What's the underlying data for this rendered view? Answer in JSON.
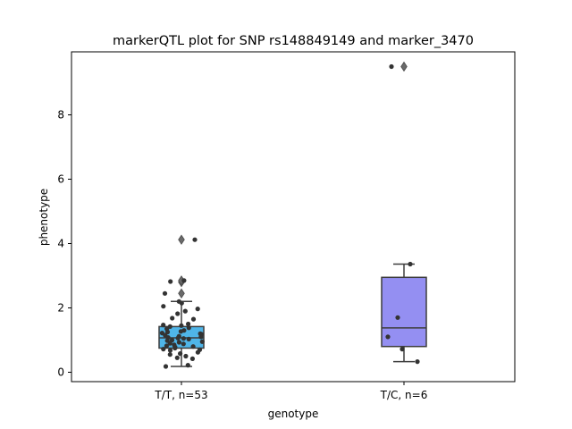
{
  "chart_data": {
    "type": "box",
    "title": "markerQTL plot for SNP rs148849149 and marker_3470",
    "xlabel": "genotype",
    "ylabel": "phenotype",
    "ylim": [
      -0.3,
      9.75
    ],
    "yticks": [
      0,
      2,
      4,
      6,
      8
    ],
    "categories": [
      "T/T, n=53",
      "T/C, n=6"
    ],
    "colors": {
      "T/T, n=53": "#4fb5e8",
      "T/C, n=6": "#948ff2"
    },
    "boxes": [
      {
        "category": "T/T, n=53",
        "q1": 0.75,
        "median": 1.07,
        "q3": 1.42,
        "whisker_low": 0.18,
        "whisker_high": 2.2,
        "outliers": [
          2.45,
          2.8,
          2.85,
          4.12
        ]
      },
      {
        "category": "T/C, n=6",
        "q1": 0.8,
        "median": 1.38,
        "q3": 2.95,
        "whisker_low": 0.33,
        "whisker_high": 3.36,
        "outliers": [
          9.5
        ]
      }
    ],
    "points": [
      {
        "category": "T/T, n=53",
        "values": [
          4.12,
          2.85,
          2.45,
          2.82,
          2.2,
          2.15,
          2.05,
          1.97,
          1.9,
          1.82,
          1.68,
          1.65,
          1.5,
          1.47,
          1.45,
          1.42,
          1.38,
          1.35,
          1.3,
          1.27,
          1.25,
          1.22,
          1.2,
          1.18,
          1.15,
          1.12,
          1.1,
          1.08,
          1.06,
          1.05,
          1.03,
          1.0,
          0.98,
          0.95,
          0.93,
          0.9,
          0.88,
          0.85,
          0.82,
          0.8,
          0.78,
          0.75,
          0.72,
          0.7,
          0.68,
          0.62,
          0.58,
          0.55,
          0.5,
          0.45,
          0.42,
          0.22,
          0.18
        ]
      },
      {
        "category": "T/C, n=6",
        "values": [
          9.5,
          3.36,
          1.7,
          1.1,
          0.72,
          0.33
        ]
      }
    ]
  }
}
